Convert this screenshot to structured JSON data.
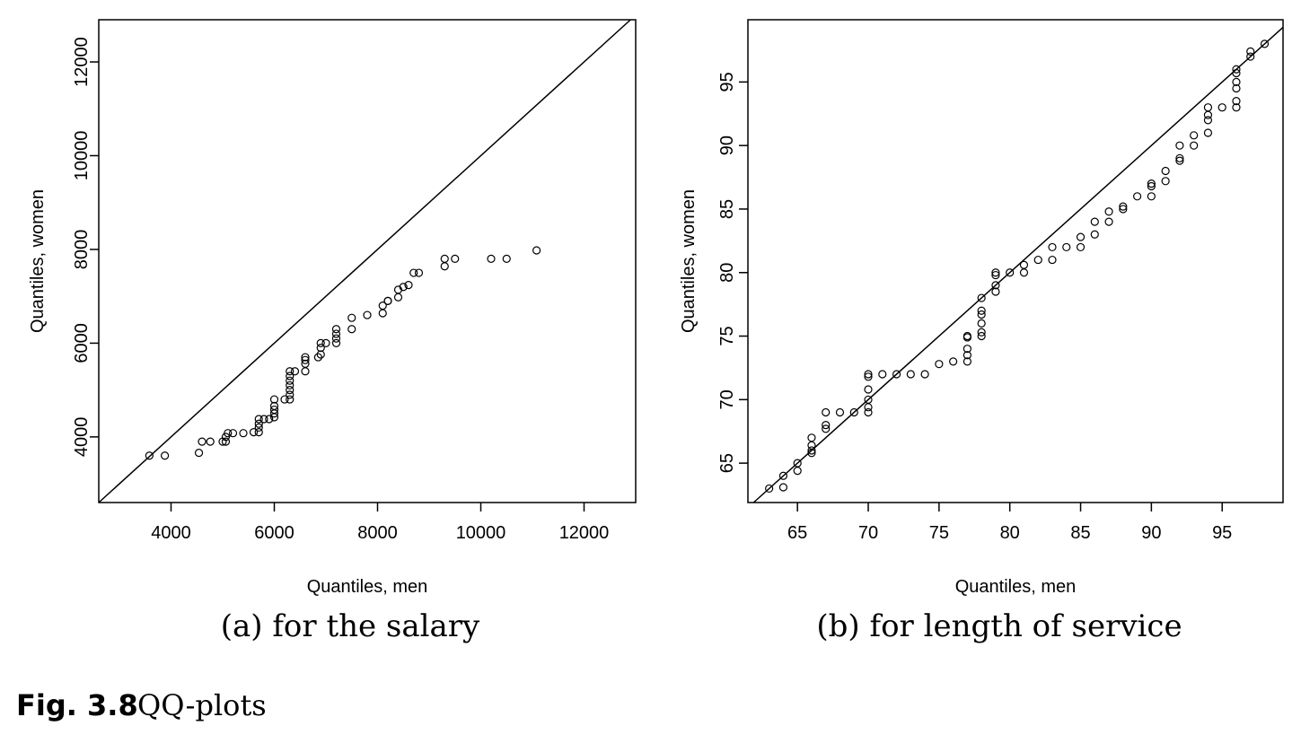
{
  "chart_data": [
    {
      "type": "scatter",
      "xlabel": "Quantiles, men",
      "ylabel": "Quantiles, women",
      "caption": "(a) for the salary",
      "xlim": [
        2600,
        13000
      ],
      "ylim": [
        2600,
        12900
      ],
      "xticks": [
        4000,
        6000,
        8000,
        10000,
        12000
      ],
      "yticks": [
        4000,
        6000,
        8000,
        10000,
        12000
      ],
      "reference_line": "y = x",
      "grid": false,
      "points": [
        [
          3580,
          3600
        ],
        [
          3880,
          3600
        ],
        [
          4540,
          3660
        ],
        [
          4600,
          3900
        ],
        [
          4760,
          3900
        ],
        [
          5000,
          3900
        ],
        [
          5060,
          3900
        ],
        [
          5060,
          4000
        ],
        [
          5100,
          4080
        ],
        [
          5200,
          4080
        ],
        [
          5400,
          4080
        ],
        [
          5600,
          4100
        ],
        [
          5700,
          4100
        ],
        [
          5700,
          4200
        ],
        [
          5700,
          4280
        ],
        [
          5700,
          4380
        ],
        [
          5800,
          4380
        ],
        [
          5900,
          4380
        ],
        [
          6000,
          4420
        ],
        [
          6000,
          4500
        ],
        [
          6000,
          4580
        ],
        [
          6000,
          4660
        ],
        [
          6000,
          4800
        ],
        [
          6200,
          4800
        ],
        [
          6300,
          4800
        ],
        [
          6300,
          4900
        ],
        [
          6300,
          5000
        ],
        [
          6300,
          5100
        ],
        [
          6300,
          5200
        ],
        [
          6300,
          5300
        ],
        [
          6300,
          5400
        ],
        [
          6400,
          5400
        ],
        [
          6600,
          5400
        ],
        [
          6600,
          5560
        ],
        [
          6600,
          5640
        ],
        [
          6600,
          5700
        ],
        [
          6850,
          5700
        ],
        [
          6900,
          5760
        ],
        [
          6900,
          5900
        ],
        [
          6900,
          6000
        ],
        [
          7000,
          6000
        ],
        [
          7200,
          6000
        ],
        [
          7200,
          6100
        ],
        [
          7200,
          6200
        ],
        [
          7200,
          6300
        ],
        [
          7500,
          6300
        ],
        [
          7500,
          6540
        ],
        [
          7800,
          6600
        ],
        [
          8100,
          6640
        ],
        [
          8100,
          6800
        ],
        [
          8200,
          6900
        ],
        [
          8200,
          6900
        ],
        [
          8400,
          6980
        ],
        [
          8400,
          7140
        ],
        [
          8500,
          7200
        ],
        [
          8600,
          7240
        ],
        [
          8700,
          7500
        ],
        [
          8800,
          7500
        ],
        [
          9300,
          7640
        ],
        [
          9300,
          7800
        ],
        [
          9500,
          7800
        ],
        [
          10200,
          7800
        ],
        [
          10500,
          7800
        ],
        [
          11080,
          7980
        ]
      ]
    },
    {
      "type": "scatter",
      "xlabel": "Quantiles, men",
      "ylabel": "Quantiles, women",
      "caption": "(b) for length of service",
      "xlim": [
        61.5,
        99.3
      ],
      "ylim": [
        61.9,
        99.9
      ],
      "xticks": [
        65,
        70,
        75,
        80,
        85,
        90,
        95
      ],
      "yticks": [
        65,
        70,
        75,
        80,
        85,
        90,
        95
      ],
      "reference_line": "y = x",
      "grid": false,
      "points": [
        [
          63,
          63
        ],
        [
          64,
          63.1
        ],
        [
          64,
          64
        ],
        [
          65,
          64.4
        ],
        [
          65,
          65
        ],
        [
          66,
          65.8
        ],
        [
          66,
          66
        ],
        [
          66,
          66.4
        ],
        [
          66,
          67
        ],
        [
          67,
          67.7
        ],
        [
          67,
          68
        ],
        [
          67,
          69
        ],
        [
          68,
          69
        ],
        [
          69,
          69
        ],
        [
          70,
          69
        ],
        [
          70,
          69.4
        ],
        [
          70,
          70
        ],
        [
          70,
          70.8
        ],
        [
          70,
          71.8
        ],
        [
          70,
          72
        ],
        [
          71,
          72
        ],
        [
          72,
          72
        ],
        [
          73,
          72
        ],
        [
          74,
          72
        ],
        [
          75,
          72.8
        ],
        [
          76,
          73
        ],
        [
          77,
          73
        ],
        [
          77,
          73.5
        ],
        [
          77,
          74
        ],
        [
          77,
          74.9
        ],
        [
          77,
          75
        ],
        [
          78,
          75
        ],
        [
          78,
          75.3
        ],
        [
          78,
          76
        ],
        [
          78,
          76.7
        ],
        [
          78,
          77
        ],
        [
          78,
          78
        ],
        [
          79,
          78.5
        ],
        [
          79,
          79
        ],
        [
          79,
          79.8
        ],
        [
          79,
          80
        ],
        [
          80,
          80
        ],
        [
          81,
          80
        ],
        [
          81,
          80.6
        ],
        [
          82,
          81
        ],
        [
          83,
          81
        ],
        [
          83,
          82
        ],
        [
          84,
          82
        ],
        [
          85,
          82
        ],
        [
          85,
          82.8
        ],
        [
          86,
          83
        ],
        [
          86,
          84
        ],
        [
          87,
          84
        ],
        [
          87,
          84.8
        ],
        [
          88,
          85
        ],
        [
          88,
          85.2
        ],
        [
          89,
          86
        ],
        [
          90,
          86
        ],
        [
          90,
          86.8
        ],
        [
          90,
          87
        ],
        [
          91,
          87.2
        ],
        [
          91,
          88
        ],
        [
          92,
          88.8
        ],
        [
          92,
          89
        ],
        [
          92,
          90
        ],
        [
          93,
          90
        ],
        [
          93,
          90.8
        ],
        [
          94,
          91
        ],
        [
          94,
          92
        ],
        [
          94,
          92.4
        ],
        [
          94,
          93
        ],
        [
          95,
          93
        ],
        [
          96,
          93
        ],
        [
          96,
          93.5
        ],
        [
          96,
          94.5
        ],
        [
          96,
          95
        ],
        [
          96,
          95.7
        ],
        [
          96,
          96
        ],
        [
          97,
          97
        ],
        [
          97,
          97.4
        ],
        [
          98,
          98
        ]
      ]
    }
  ],
  "figure": {
    "label": "Fig. 3.8",
    "text": "QQ-plots"
  }
}
